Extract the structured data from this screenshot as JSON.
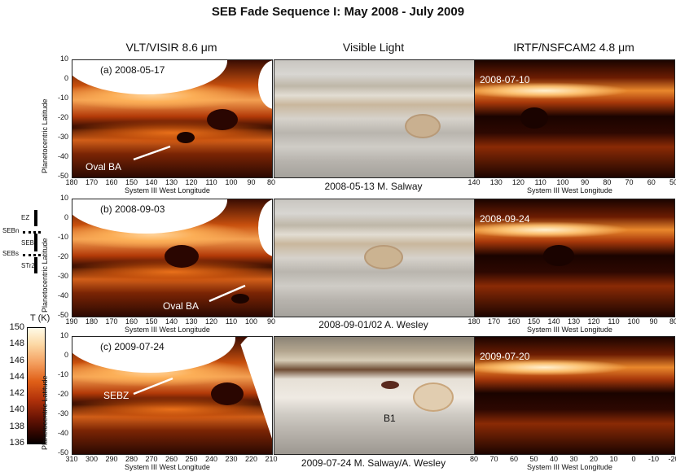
{
  "title": "SEB Fade Sequence I: May 2008 - July 2009",
  "columns": {
    "left": "VLT/VISIR 8.6 μm",
    "middle": "Visible Light",
    "right": "IRTF/NSFCAM2 4.8 μm"
  },
  "y_axis_label": "Planetocentric Latitude",
  "x_axis_label": "System III West Longitude",
  "lat_ticks": [
    "10",
    "0",
    "-10",
    "-20",
    "-30",
    "-40",
    "-50"
  ],
  "rows": [
    {
      "visir_label": "(a) 2008-05-17",
      "visir_x_ticks": [
        "180",
        "170",
        "160",
        "150",
        "140",
        "130",
        "120",
        "110",
        "100",
        "90",
        "80"
      ],
      "annotation": "Oval BA",
      "visible_credit": "2008-05-13 M. Salway",
      "irtf_label": "2008-07-10",
      "irtf_x_ticks": [
        "140",
        "130",
        "120",
        "110",
        "100",
        "90",
        "80",
        "70",
        "60",
        "50"
      ]
    },
    {
      "visir_label": "(b) 2008-09-03",
      "visir_x_ticks": [
        "190",
        "180",
        "170",
        "160",
        "150",
        "140",
        "130",
        "120",
        "110",
        "100",
        "90"
      ],
      "annotation": "Oval BA",
      "visible_credit": "2008-09-01/02 A. Wesley",
      "irtf_label": "2008-09-24",
      "irtf_x_ticks": [
        "180",
        "170",
        "160",
        "150",
        "140",
        "130",
        "120",
        "110",
        "100",
        "90",
        "80"
      ]
    },
    {
      "visir_label": "(c) 2009-07-24",
      "visir_x_ticks": [
        "310",
        "300",
        "290",
        "280",
        "270",
        "260",
        "250",
        "240",
        "230",
        "220",
        "210"
      ],
      "annotation": "SEBZ",
      "visible_annotation": "B1",
      "visible_credit": "2009-07-24 M. Salway/A. Wesley",
      "irtf_label": "2009-07-20",
      "irtf_x_ticks": [
        "80",
        "70",
        "60",
        "50",
        "40",
        "30",
        "20",
        "10",
        "0",
        "-10",
        "-20"
      ]
    }
  ],
  "bands": [
    "EZ",
    "SEBn",
    "SEB",
    "SEBs",
    "STrZ"
  ],
  "colorbar": {
    "label": "T (K)",
    "ticks": [
      "150",
      "148",
      "146",
      "144",
      "142",
      "140",
      "138",
      "136"
    ]
  }
}
